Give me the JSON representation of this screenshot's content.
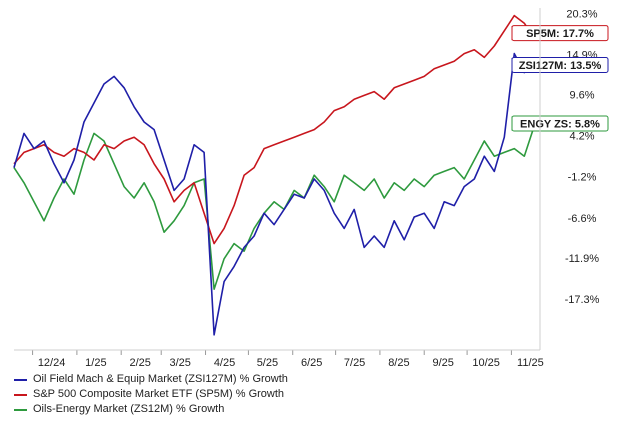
{
  "chart_data": {
    "type": "line",
    "x_ticks": [
      "12/24",
      "1/25",
      "2/25",
      "3/25",
      "4/25",
      "5/25",
      "6/25",
      "7/25",
      "8/25",
      "9/25",
      "10/25",
      "11/25"
    ],
    "y_ticks": [
      "20.3%",
      "14.9%",
      "9.6%",
      "4.2%",
      "-1.2%",
      "-6.6%",
      "-11.9%",
      "-17.3%"
    ],
    "y_tick_values": [
      20.3,
      14.9,
      9.6,
      4.2,
      -1.2,
      -6.6,
      -11.9,
      -17.3
    ],
    "ylim": [
      -24,
      21
    ],
    "x_date_range": [
      "2024-11-18",
      "2025-11-21"
    ],
    "grid": false,
    "legend_position": "bottom-left",
    "series": [
      {
        "name": "Oil Field Mach & Equip Market (ZSI127M) % Growth",
        "short_label": "ZSI127M: 13.5%",
        "color": "#1f1fa8",
        "x": [
          "2024-11-18",
          "2024-11-25",
          "2024-12-02",
          "2024-12-09",
          "2024-12-16",
          "2024-12-23",
          "2024-12-30",
          "2025-01-06",
          "2025-01-13",
          "2025-01-20",
          "2025-01-27",
          "2025-02-03",
          "2025-02-10",
          "2025-02-17",
          "2025-02-24",
          "2025-03-03",
          "2025-03-10",
          "2025-03-17",
          "2025-03-24",
          "2025-03-31",
          "2025-04-07",
          "2025-04-14",
          "2025-04-21",
          "2025-04-28",
          "2025-05-05",
          "2025-05-12",
          "2025-05-19",
          "2025-05-26",
          "2025-06-02",
          "2025-06-09",
          "2025-06-16",
          "2025-06-23",
          "2025-06-30",
          "2025-07-07",
          "2025-07-14",
          "2025-07-21",
          "2025-07-28",
          "2025-08-04",
          "2025-08-11",
          "2025-08-18",
          "2025-08-25",
          "2025-09-01",
          "2025-09-08",
          "2025-09-15",
          "2025-09-22",
          "2025-09-29",
          "2025-10-06",
          "2025-10-13",
          "2025-10-20",
          "2025-10-27",
          "2025-11-03",
          "2025-11-10",
          "2025-11-17",
          "2025-11-21"
        ],
        "values": [
          0.0,
          4.5,
          2.5,
          3.5,
          0.5,
          -2.0,
          1.0,
          6.0,
          8.5,
          11.0,
          12.0,
          10.5,
          8.0,
          6.0,
          5.0,
          1.0,
          -3.0,
          -1.5,
          3.0,
          2.0,
          -22.0,
          -15.0,
          -13.0,
          -10.5,
          -9.0,
          -6.0,
          -7.5,
          -5.5,
          -3.5,
          -4.0,
          -1.5,
          -3.0,
          -6.0,
          -8.0,
          -5.5,
          -10.5,
          -9.0,
          -10.5,
          -7.0,
          -9.5,
          -6.5,
          -6.0,
          -8.0,
          -4.5,
          -5.0,
          -2.5,
          -1.5,
          1.5,
          -0.5,
          4.0,
          15.0,
          12.5,
          14.0,
          13.5
        ]
      },
      {
        "name": "S&P 500 Composite Market ETF (SP5M) % Growth",
        "short_label": "SP5M: 17.7%",
        "color": "#c8161d",
        "x": [
          "2024-11-18",
          "2024-11-25",
          "2024-12-02",
          "2024-12-09",
          "2024-12-16",
          "2024-12-23",
          "2024-12-30",
          "2025-01-06",
          "2025-01-13",
          "2025-01-20",
          "2025-01-27",
          "2025-02-03",
          "2025-02-10",
          "2025-02-17",
          "2025-02-24",
          "2025-03-03",
          "2025-03-10",
          "2025-03-17",
          "2025-03-24",
          "2025-03-31",
          "2025-04-07",
          "2025-04-14",
          "2025-04-21",
          "2025-04-28",
          "2025-05-05",
          "2025-05-12",
          "2025-05-19",
          "2025-05-26",
          "2025-06-02",
          "2025-06-09",
          "2025-06-16",
          "2025-06-23",
          "2025-06-30",
          "2025-07-07",
          "2025-07-14",
          "2025-07-21",
          "2025-07-28",
          "2025-08-04",
          "2025-08-11",
          "2025-08-18",
          "2025-08-25",
          "2025-09-01",
          "2025-09-08",
          "2025-09-15",
          "2025-09-22",
          "2025-09-29",
          "2025-10-06",
          "2025-10-13",
          "2025-10-20",
          "2025-10-27",
          "2025-11-03",
          "2025-11-10",
          "2025-11-17",
          "2025-11-21"
        ],
        "values": [
          0.5,
          2.0,
          2.5,
          3.0,
          2.0,
          1.5,
          2.5,
          2.0,
          1.0,
          3.0,
          2.5,
          3.5,
          4.0,
          3.0,
          0.5,
          -1.5,
          -4.5,
          -3.0,
          -2.0,
          -6.0,
          -10.0,
          -8.0,
          -5.0,
          -1.0,
          0.0,
          2.5,
          3.0,
          3.5,
          4.0,
          4.5,
          5.0,
          6.0,
          7.5,
          8.0,
          9.0,
          9.5,
          10.0,
          9.0,
          10.5,
          11.0,
          11.5,
          12.0,
          13.0,
          13.5,
          14.0,
          15.0,
          15.5,
          14.5,
          16.0,
          18.0,
          20.0,
          19.0,
          17.0,
          17.7
        ]
      },
      {
        "name": "Oils-Energy Market (ZS12M) % Growth",
        "short_label": "ENGY ZS: 5.8%",
        "color": "#2e9a3e",
        "x": [
          "2024-11-18",
          "2024-11-25",
          "2024-12-02",
          "2024-12-09",
          "2024-12-16",
          "2024-12-23",
          "2024-12-30",
          "2025-01-06",
          "2025-01-13",
          "2025-01-20",
          "2025-01-27",
          "2025-02-03",
          "2025-02-10",
          "2025-02-17",
          "2025-02-24",
          "2025-03-03",
          "2025-03-10",
          "2025-03-17",
          "2025-03-24",
          "2025-03-31",
          "2025-04-07",
          "2025-04-14",
          "2025-04-21",
          "2025-04-28",
          "2025-05-05",
          "2025-05-12",
          "2025-05-19",
          "2025-05-26",
          "2025-06-02",
          "2025-06-09",
          "2025-06-16",
          "2025-06-23",
          "2025-06-30",
          "2025-07-07",
          "2025-07-14",
          "2025-07-21",
          "2025-07-28",
          "2025-08-04",
          "2025-08-11",
          "2025-08-18",
          "2025-08-25",
          "2025-09-01",
          "2025-09-08",
          "2025-09-15",
          "2025-09-22",
          "2025-09-29",
          "2025-10-06",
          "2025-10-13",
          "2025-10-20",
          "2025-10-27",
          "2025-11-03",
          "2025-11-10",
          "2025-11-17",
          "2025-11-21"
        ],
        "values": [
          0.0,
          -2.0,
          -4.5,
          -7.0,
          -4.0,
          -1.5,
          -3.5,
          1.0,
          4.5,
          3.5,
          0.5,
          -2.5,
          -4.0,
          -2.0,
          -4.5,
          -8.5,
          -7.0,
          -5.0,
          -2.0,
          -1.5,
          -16.0,
          -12.0,
          -10.0,
          -11.0,
          -8.0,
          -6.0,
          -4.5,
          -5.5,
          -3.0,
          -4.0,
          -1.0,
          -2.5,
          -4.5,
          -1.0,
          -2.0,
          -3.0,
          -1.5,
          -4.0,
          -2.0,
          -3.0,
          -1.5,
          -2.5,
          -1.0,
          -0.5,
          0.0,
          -1.5,
          1.0,
          3.5,
          1.5,
          2.0,
          2.5,
          1.5,
          5.5,
          5.8
        ]
      }
    ]
  }
}
